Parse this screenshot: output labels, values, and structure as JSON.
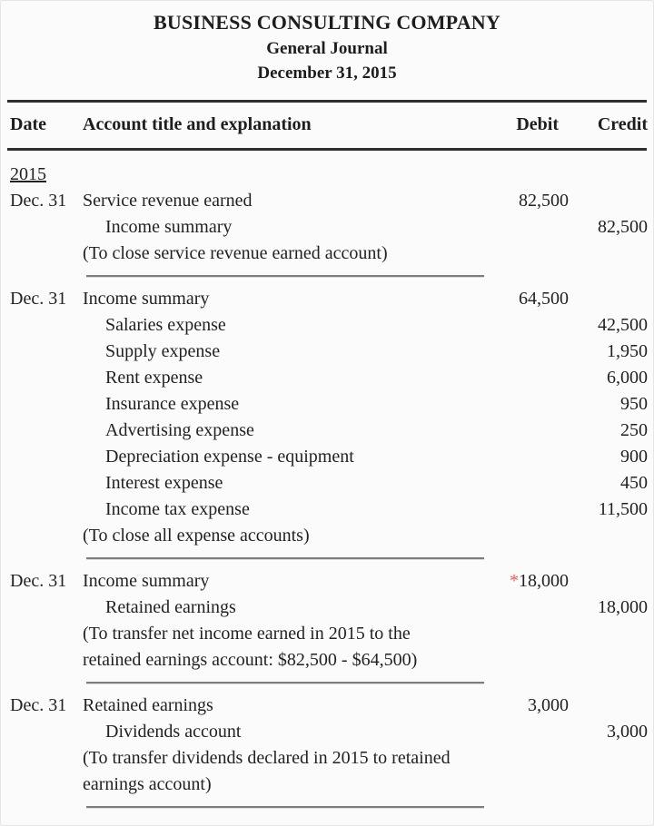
{
  "header": {
    "company": "BUSINESS CONSULTING COMPANY",
    "journal_title": "General Journal",
    "date": "December 31, 2015"
  },
  "table": {
    "columns": [
      "Date",
      "Account title and explanation",
      "Debit",
      "Credit"
    ],
    "year": "2015"
  },
  "journal": {
    "entries": [
      {
        "date": "Dec. 31",
        "lines": [
          {
            "account": "Service revenue earned",
            "debit": "82,500",
            "credit": ""
          },
          {
            "account": "Income summary",
            "debit": "",
            "credit": "82,500"
          }
        ],
        "explanation": "(To close service revenue earned account)"
      },
      {
        "date": "Dec. 31",
        "lines": [
          {
            "account": "Income summary",
            "debit": "64,500",
            "credit": ""
          },
          {
            "account": "Salaries expense",
            "debit": "",
            "credit": "42,500"
          },
          {
            "account": "Supply expense",
            "debit": "",
            "credit": "1,950"
          },
          {
            "account": "Rent expense",
            "debit": "",
            "credit": "6,000"
          },
          {
            "account": "Insurance expense",
            "debit": "",
            "credit": "950"
          },
          {
            "account": "Advertising expense",
            "debit": "",
            "credit": "250"
          },
          {
            "account": "Depreciation expense - equipment",
            "debit": "",
            "credit": "900"
          },
          {
            "account": "Interest expense",
            "debit": "",
            "credit": "450"
          },
          {
            "account": "Income tax expense",
            "debit": "",
            "credit": "11,500"
          }
        ],
        "explanation": "(To close all expense accounts)"
      },
      {
        "date": "Dec. 31",
        "lines": [
          {
            "account": "Income summary",
            "debit_flag": "*",
            "debit": "18,000",
            "credit": ""
          },
          {
            "account": "Retained earnings",
            "debit": "",
            "credit": "18,000"
          }
        ],
        "explanation": "(To transfer net income earned in 2015 to the retained earnings account: $82,500 - $64,500)"
      },
      {
        "date": "Dec. 31",
        "lines": [
          {
            "account": "Retained earnings",
            "debit": "3,000",
            "credit": ""
          },
          {
            "account": "Dividends account",
            "debit": "",
            "credit": "3,000"
          }
        ],
        "explanation": "(To transfer dividends declared in 2015 to retained earnings account)"
      }
    ]
  },
  "colors": {
    "background": "#fbfbfb",
    "text": "#222222",
    "heavy_rule": "#2e2e2e",
    "entry_separator": "#7d7d7d",
    "asterisk_red": "#e05c5c"
  }
}
